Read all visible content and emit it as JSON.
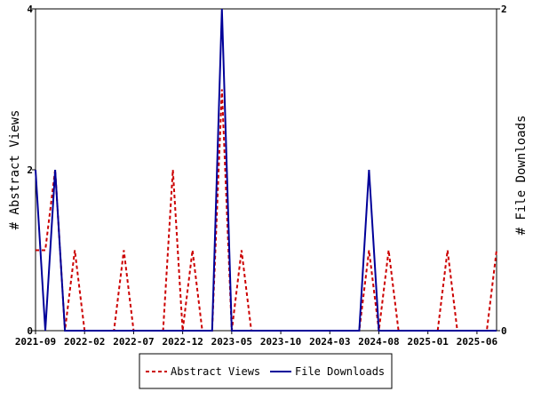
{
  "chart_data": {
    "type": "line",
    "title": "",
    "grid": false,
    "legend_position": "bottom",
    "xlabel": "",
    "ylabel_left": "# Abstract Views",
    "ylabel_right": "# File Downloads",
    "x_tick_labels": [
      "2021-09",
      "2022-02",
      "2022-07",
      "2022-12",
      "2023-05",
      "2023-10",
      "2024-03",
      "2024-08",
      "2025-01",
      "2025-06"
    ],
    "x_range": [
      "2021-09",
      "2025-08"
    ],
    "y_left_ticks": [
      "0",
      "2",
      "4"
    ],
    "y_right_ticks": [
      "0",
      "2"
    ],
    "y_left_range": [
      0,
      4
    ],
    "y_right_range": [
      0,
      2
    ],
    "colors": {
      "abstract_views": "#cc0000",
      "file_downloads": "#000099"
    },
    "x": [
      "2021-09",
      "2021-10",
      "2021-11",
      "2021-12",
      "2022-01",
      "2022-02",
      "2022-03",
      "2022-04",
      "2022-05",
      "2022-06",
      "2022-07",
      "2022-08",
      "2022-09",
      "2022-10",
      "2022-11",
      "2022-12",
      "2023-01",
      "2023-02",
      "2023-03",
      "2023-04",
      "2023-05",
      "2023-06",
      "2023-07",
      "2023-08",
      "2023-09",
      "2023-10",
      "2023-11",
      "2023-12",
      "2024-01",
      "2024-02",
      "2024-03",
      "2024-04",
      "2024-05",
      "2024-06",
      "2024-07",
      "2024-08",
      "2024-09",
      "2024-10",
      "2024-11",
      "2024-12",
      "2025-01",
      "2025-02",
      "2025-03",
      "2025-04",
      "2025-05",
      "2025-06",
      "2025-07",
      "2025-08"
    ],
    "series": [
      {
        "name": "Abstract Views",
        "axis": "left",
        "style": "dashed",
        "values": [
          1,
          1,
          2,
          0,
          1,
          0,
          0,
          0,
          0,
          1,
          0,
          0,
          0,
          0,
          2,
          0,
          1,
          0,
          0,
          3,
          0,
          1,
          0,
          0,
          0,
          0,
          0,
          0,
          0,
          0,
          0,
          0,
          0,
          0,
          1,
          0,
          1,
          0,
          0,
          0,
          0,
          0,
          1,
          0,
          0,
          0,
          0,
          1
        ]
      },
      {
        "name": "File Downloads",
        "axis": "right",
        "style": "solid",
        "values": [
          1,
          0,
          1,
          0,
          0,
          0,
          0,
          0,
          0,
          0,
          0,
          0,
          0,
          0,
          0,
          0,
          0,
          0,
          0,
          2,
          0,
          0,
          0,
          0,
          0,
          0,
          0,
          0,
          0,
          0,
          0,
          0,
          0,
          0,
          1,
          0,
          0,
          0,
          0,
          0,
          0,
          0,
          0,
          0,
          0,
          0,
          0,
          0
        ]
      }
    ]
  }
}
